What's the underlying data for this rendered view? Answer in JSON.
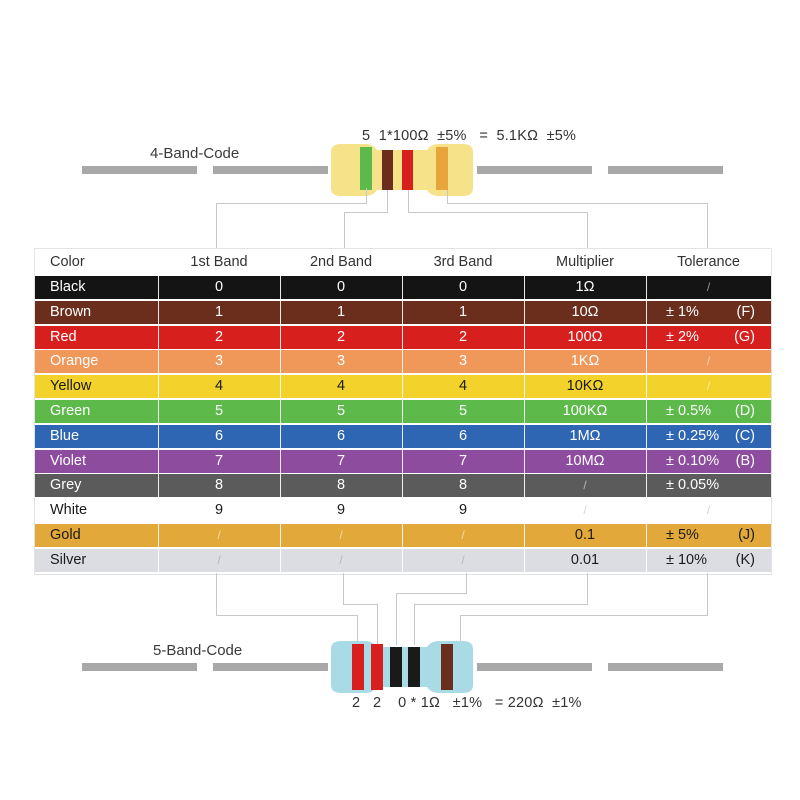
{
  "four_band": {
    "label": "4-Band-Code",
    "formula": "5  1*100Ω  ±5%   =  5.1KΩ  ±5%",
    "body_color": "#f6e289",
    "bands": [
      "#5cb94a",
      "#6b2e1c",
      "#d7201e",
      "#e7a53b"
    ]
  },
  "five_band": {
    "label": "5-Band-Code",
    "formula": "2   2    0 * 1Ω   ±1%   = 220Ω  ±1%",
    "body_color": "#a9dbe7",
    "bands": [
      "#d7201e",
      "#d7201e",
      "#1a1a1a",
      "#1a1a1a",
      "#6b2e1c"
    ]
  },
  "table": {
    "headers": [
      "Color",
      "1st Band",
      "2nd Band",
      "3rd Band",
      "Multiplier",
      "Tolerance"
    ],
    "rows": [
      {
        "name": "Black",
        "bg": "#141414",
        "fg": "#ffffff",
        "b1": "0",
        "b2": "0",
        "b3": "0",
        "mult": "1Ω",
        "tol": "",
        "code": ""
      },
      {
        "name": "Brown",
        "bg": "#6b2e1c",
        "fg": "#ffffff",
        "b1": "1",
        "b2": "1",
        "b3": "1",
        "mult": "10Ω",
        "tol": "± 1%",
        "code": "(F)"
      },
      {
        "name": "Red",
        "bg": "#d7201e",
        "fg": "#ffffff",
        "b1": "2",
        "b2": "2",
        "b3": "2",
        "mult": "100Ω",
        "tol": "± 2%",
        "code": "(G)"
      },
      {
        "name": "Orange",
        "bg": "#f0975a",
        "fg": "#ffffff",
        "b1": "3",
        "b2": "3",
        "b3": "3",
        "mult": "1KΩ",
        "tol": "",
        "code": ""
      },
      {
        "name": "Yellow",
        "bg": "#f3d22b",
        "fg": "#1a1a1a",
        "b1": "4",
        "b2": "4",
        "b3": "4",
        "mult": "10KΩ",
        "tol": "",
        "code": ""
      },
      {
        "name": "Green",
        "bg": "#5cb94a",
        "fg": "#ffffff",
        "b1": "5",
        "b2": "5",
        "b3": "5",
        "mult": "100KΩ",
        "tol": "± 0.5%",
        "code": "(D)"
      },
      {
        "name": "Blue",
        "bg": "#2e66b4",
        "fg": "#ffffff",
        "b1": "6",
        "b2": "6",
        "b3": "6",
        "mult": "1MΩ",
        "tol": "± 0.25%",
        "code": "(C)"
      },
      {
        "name": "Violet",
        "bg": "#8e4c9f",
        "fg": "#ffffff",
        "b1": "7",
        "b2": "7",
        "b3": "7",
        "mult": "10MΩ",
        "tol": "± 0.10%",
        "code": "(B)"
      },
      {
        "name": "Grey",
        "bg": "#5b5b5b",
        "fg": "#ffffff",
        "b1": "8",
        "b2": "8",
        "b3": "8",
        "mult": "",
        "tol": "± 0.05%",
        "code": ""
      },
      {
        "name": "White",
        "bg": "#ffffff",
        "fg": "#1a1a1a",
        "b1": "9",
        "b2": "9",
        "b3": "9",
        "mult": "",
        "tol": "",
        "code": ""
      },
      {
        "name": "Gold",
        "bg": "#e2a83a",
        "fg": "#1a1a1a",
        "b1": "",
        "b2": "",
        "b3": "",
        "mult": "0.1",
        "tol": "± 5%",
        "code": "(J)"
      },
      {
        "name": "Silver",
        "bg": "#dcdde3",
        "fg": "#1a1a1a",
        "b1": "",
        "b2": "",
        "b3": "",
        "mult": "0.01",
        "tol": "± 10%",
        "code": "(K)"
      }
    ]
  }
}
